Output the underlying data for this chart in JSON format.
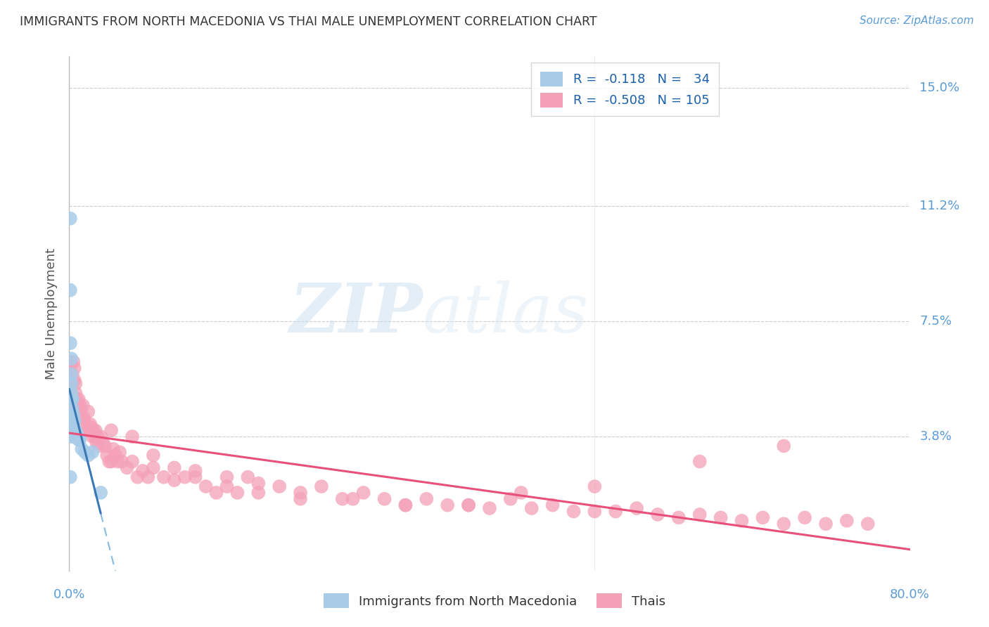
{
  "title": "IMMIGRANTS FROM NORTH MACEDONIA VS THAI MALE UNEMPLOYMENT CORRELATION CHART",
  "source": "Source: ZipAtlas.com",
  "ylabel": "Male Unemployment",
  "xlim": [
    0.0,
    0.8
  ],
  "ylim": [
    -0.005,
    0.16
  ],
  "yticks": [
    0.038,
    0.075,
    0.112,
    0.15
  ],
  "ytick_labels": [
    "3.8%",
    "7.5%",
    "11.2%",
    "15.0%"
  ],
  "blue_scatter_color": "#a8cce8",
  "pink_scatter_color": "#f4a0b8",
  "blue_line_color": "#3a78b5",
  "blue_dash_color": "#88bbdd",
  "pink_line_color": "#e8507a",
  "legend_r1_prefix": "R = ",
  "legend_r1_val": " -0.118",
  "legend_n1_prefix": "  N = ",
  "legend_n1_val": " 34",
  "legend_r2_prefix": "R = ",
  "legend_r2_val": " -0.508",
  "legend_n2_prefix": "  N = ",
  "legend_n2_val": "105",
  "legend_label1": "Immigrants from North Macedonia",
  "legend_label2": "Thais",
  "watermark_zip": "ZIP",
  "watermark_atlas": "atlas",
  "blue_x": [
    0.001,
    0.001,
    0.001,
    0.001,
    0.002,
    0.002,
    0.002,
    0.002,
    0.002,
    0.002,
    0.002,
    0.003,
    0.003,
    0.003,
    0.003,
    0.003,
    0.004,
    0.004,
    0.004,
    0.004,
    0.005,
    0.005,
    0.005,
    0.006,
    0.006,
    0.007,
    0.008,
    0.009,
    0.01,
    0.012,
    0.015,
    0.018,
    0.022,
    0.03
  ],
  "blue_y": [
    0.108,
    0.085,
    0.068,
    0.025,
    0.063,
    0.058,
    0.055,
    0.052,
    0.05,
    0.045,
    0.038,
    0.05,
    0.047,
    0.044,
    0.042,
    0.04,
    0.045,
    0.042,
    0.04,
    0.038,
    0.043,
    0.04,
    0.038,
    0.04,
    0.038,
    0.039,
    0.038,
    0.037,
    0.037,
    0.034,
    0.033,
    0.032,
    0.033,
    0.02
  ],
  "pink_x": [
    0.002,
    0.003,
    0.004,
    0.005,
    0.005,
    0.006,
    0.006,
    0.007,
    0.008,
    0.009,
    0.01,
    0.011,
    0.012,
    0.013,
    0.014,
    0.015,
    0.016,
    0.018,
    0.019,
    0.02,
    0.021,
    0.022,
    0.023,
    0.024,
    0.025,
    0.026,
    0.027,
    0.028,
    0.03,
    0.032,
    0.034,
    0.036,
    0.038,
    0.04,
    0.042,
    0.044,
    0.046,
    0.048,
    0.05,
    0.055,
    0.06,
    0.065,
    0.07,
    0.075,
    0.08,
    0.09,
    0.1,
    0.11,
    0.12,
    0.13,
    0.14,
    0.15,
    0.16,
    0.17,
    0.18,
    0.2,
    0.22,
    0.24,
    0.26,
    0.28,
    0.3,
    0.32,
    0.34,
    0.36,
    0.38,
    0.4,
    0.42,
    0.44,
    0.46,
    0.48,
    0.5,
    0.52,
    0.54,
    0.56,
    0.58,
    0.6,
    0.62,
    0.64,
    0.66,
    0.68,
    0.7,
    0.72,
    0.74,
    0.76,
    0.68,
    0.6,
    0.5,
    0.43,
    0.38,
    0.32,
    0.27,
    0.22,
    0.18,
    0.15,
    0.12,
    0.1,
    0.08,
    0.06,
    0.04,
    0.02,
    0.012,
    0.008,
    0.006,
    0.004,
    0.003
  ],
  "pink_y": [
    0.062,
    0.058,
    0.062,
    0.06,
    0.056,
    0.055,
    0.052,
    0.05,
    0.048,
    0.05,
    0.048,
    0.046,
    0.044,
    0.048,
    0.044,
    0.042,
    0.04,
    0.046,
    0.04,
    0.04,
    0.041,
    0.038,
    0.04,
    0.038,
    0.04,
    0.036,
    0.038,
    0.035,
    0.038,
    0.036,
    0.035,
    0.032,
    0.03,
    0.03,
    0.034,
    0.032,
    0.03,
    0.033,
    0.03,
    0.028,
    0.03,
    0.025,
    0.027,
    0.025,
    0.028,
    0.025,
    0.024,
    0.025,
    0.025,
    0.022,
    0.02,
    0.022,
    0.02,
    0.025,
    0.02,
    0.022,
    0.018,
    0.022,
    0.018,
    0.02,
    0.018,
    0.016,
    0.018,
    0.016,
    0.016,
    0.015,
    0.018,
    0.015,
    0.016,
    0.014,
    0.014,
    0.014,
    0.015,
    0.013,
    0.012,
    0.013,
    0.012,
    0.011,
    0.012,
    0.01,
    0.012,
    0.01,
    0.011,
    0.01,
    0.035,
    0.03,
    0.022,
    0.02,
    0.016,
    0.016,
    0.018,
    0.02,
    0.023,
    0.025,
    0.027,
    0.028,
    0.032,
    0.038,
    0.04,
    0.042,
    0.044,
    0.045,
    0.046,
    0.048,
    0.05
  ]
}
